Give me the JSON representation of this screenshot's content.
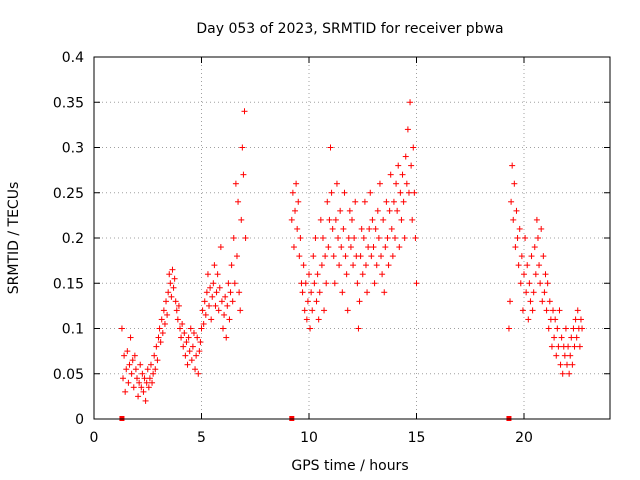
{
  "chart_data": {
    "type": "scatter",
    "title": "Day 053 of 2023, SRMTID for receiver pbwa",
    "xlabel": "GPS time / hours",
    "ylabel": "SRMTID / TECUs",
    "xlim": [
      0,
      24
    ],
    "ylim": [
      0,
      0.4
    ],
    "x_ticks": [
      0,
      5,
      10,
      15,
      20
    ],
    "y_ticks": [
      0,
      0.05,
      0.1,
      0.15,
      0.2,
      0.25,
      0.3,
      0.35,
      0.4
    ],
    "x_tick_labels": [
      "0",
      "5",
      "10",
      "15",
      "20"
    ],
    "y_tick_labels": [
      "0",
      "0.05",
      "0.1",
      "0.15",
      "0.2",
      "0.25",
      "0.3",
      "0.35",
      "0.4"
    ],
    "grid": true,
    "marker": "+",
    "color": "#ff0000",
    "data_gap_markers_x": [
      1.3,
      9.2,
      19.3
    ],
    "series": [
      {
        "name": "SRMTID",
        "points": [
          [
            1.3,
            0.1
          ],
          [
            1.35,
            0.045
          ],
          [
            1.4,
            0.07
          ],
          [
            1.45,
            0.03
          ],
          [
            1.5,
            0.055
          ],
          [
            1.55,
            0.075
          ],
          [
            1.6,
            0.04
          ],
          [
            1.65,
            0.06
          ],
          [
            1.7,
            0.09
          ],
          [
            1.75,
            0.05
          ],
          [
            1.8,
            0.065
          ],
          [
            1.85,
            0.035
          ],
          [
            1.9,
            0.07
          ],
          [
            1.95,
            0.055
          ],
          [
            2.0,
            0.045
          ],
          [
            2.05,
            0.025
          ],
          [
            2.1,
            0.04
          ],
          [
            2.15,
            0.06
          ],
          [
            2.2,
            0.035
          ],
          [
            2.25,
            0.05
          ],
          [
            2.3,
            0.03
          ],
          [
            2.35,
            0.045
          ],
          [
            2.4,
            0.02
          ],
          [
            2.45,
            0.04
          ],
          [
            2.5,
            0.055
          ],
          [
            2.55,
            0.035
          ],
          [
            2.6,
            0.045
          ],
          [
            2.65,
            0.06
          ],
          [
            2.7,
            0.04
          ],
          [
            2.75,
            0.05
          ],
          [
            2.8,
            0.07
          ],
          [
            2.85,
            0.055
          ],
          [
            2.9,
            0.08
          ],
          [
            2.95,
            0.065
          ],
          [
            3.0,
            0.09
          ],
          [
            3.05,
            0.1
          ],
          [
            3.1,
            0.085
          ],
          [
            3.15,
            0.11
          ],
          [
            3.2,
            0.095
          ],
          [
            3.25,
            0.12
          ],
          [
            3.3,
            0.105
          ],
          [
            3.35,
            0.13
          ],
          [
            3.4,
            0.115
          ],
          [
            3.45,
            0.14
          ],
          [
            3.5,
            0.16
          ],
          [
            3.55,
            0.15
          ],
          [
            3.6,
            0.135
          ],
          [
            3.65,
            0.165
          ],
          [
            3.7,
            0.145
          ],
          [
            3.75,
            0.155
          ],
          [
            3.8,
            0.13
          ],
          [
            3.85,
            0.12
          ],
          [
            3.9,
            0.11
          ],
          [
            3.95,
            0.125
          ],
          [
            4.0,
            0.1
          ],
          [
            4.05,
            0.09
          ],
          [
            4.1,
            0.105
          ],
          [
            4.15,
            0.08
          ],
          [
            4.2,
            0.095
          ],
          [
            4.25,
            0.07
          ],
          [
            4.3,
            0.085
          ],
          [
            4.35,
            0.06
          ],
          [
            4.4,
            0.09
          ],
          [
            4.45,
            0.075
          ],
          [
            4.5,
            0.1
          ],
          [
            4.55,
            0.065
          ],
          [
            4.6,
            0.08
          ],
          [
            4.65,
            0.095
          ],
          [
            4.7,
            0.055
          ],
          [
            4.75,
            0.07
          ],
          [
            4.8,
            0.09
          ],
          [
            4.85,
            0.05
          ],
          [
            4.9,
            0.075
          ],
          [
            4.95,
            0.085
          ],
          [
            5.0,
            0.1
          ],
          [
            5.05,
            0.12
          ],
          [
            5.1,
            0.105
          ],
          [
            5.15,
            0.13
          ],
          [
            5.2,
            0.115
          ],
          [
            5.25,
            0.14
          ],
          [
            5.3,
            0.16
          ],
          [
            5.35,
            0.125
          ],
          [
            5.4,
            0.145
          ],
          [
            5.45,
            0.11
          ],
          [
            5.5,
            0.135
          ],
          [
            5.55,
            0.15
          ],
          [
            5.6,
            0.17
          ],
          [
            5.65,
            0.125
          ],
          [
            5.7,
            0.14
          ],
          [
            5.75,
            0.16
          ],
          [
            5.8,
            0.12
          ],
          [
            5.85,
            0.145
          ],
          [
            5.9,
            0.19
          ],
          [
            5.95,
            0.13
          ],
          [
            6.0,
            0.1
          ],
          [
            6.05,
            0.115
          ],
          [
            6.1,
            0.135
          ],
          [
            6.15,
            0.09
          ],
          [
            6.2,
            0.125
          ],
          [
            6.25,
            0.15
          ],
          [
            6.3,
            0.11
          ],
          [
            6.35,
            0.14
          ],
          [
            6.4,
            0.17
          ],
          [
            6.45,
            0.13
          ],
          [
            6.5,
            0.2
          ],
          [
            6.55,
            0.15
          ],
          [
            6.6,
            0.26
          ],
          [
            6.65,
            0.18
          ],
          [
            6.7,
            0.24
          ],
          [
            6.75,
            0.14
          ],
          [
            6.8,
            0.12
          ],
          [
            6.85,
            0.22
          ],
          [
            6.9,
            0.3
          ],
          [
            6.95,
            0.27
          ],
          [
            7.0,
            0.34
          ],
          [
            7.05,
            0.2
          ],
          [
            9.2,
            0.22
          ],
          [
            9.25,
            0.25
          ],
          [
            9.3,
            0.19
          ],
          [
            9.35,
            0.23
          ],
          [
            9.4,
            0.26
          ],
          [
            9.45,
            0.21
          ],
          [
            9.5,
            0.24
          ],
          [
            9.55,
            0.18
          ],
          [
            9.6,
            0.2
          ],
          [
            9.65,
            0.15
          ],
          [
            9.7,
            0.14
          ],
          [
            9.75,
            0.17
          ],
          [
            9.8,
            0.12
          ],
          [
            9.85,
            0.15
          ],
          [
            9.9,
            0.11
          ],
          [
            9.95,
            0.13
          ],
          [
            10.0,
            0.16
          ],
          [
            10.05,
            0.1
          ],
          [
            10.1,
            0.14
          ],
          [
            10.15,
            0.12
          ],
          [
            10.2,
            0.18
          ],
          [
            10.25,
            0.15
          ],
          [
            10.3,
            0.2
          ],
          [
            10.35,
            0.13
          ],
          [
            10.4,
            0.16
          ],
          [
            10.45,
            0.11
          ],
          [
            10.5,
            0.14
          ],
          [
            10.55,
            0.22
          ],
          [
            10.6,
            0.17
          ],
          [
            10.65,
            0.2
          ],
          [
            10.7,
            0.12
          ],
          [
            10.75,
            0.18
          ],
          [
            10.8,
            0.15
          ],
          [
            10.85,
            0.24
          ],
          [
            10.9,
            0.19
          ],
          [
            10.95,
            0.22
          ],
          [
            11.0,
            0.3
          ],
          [
            11.05,
            0.25
          ],
          [
            11.1,
            0.21
          ],
          [
            11.15,
            0.18
          ],
          [
            11.2,
            0.15
          ],
          [
            11.25,
            0.22
          ],
          [
            11.3,
            0.26
          ],
          [
            11.35,
            0.2
          ],
          [
            11.4,
            0.17
          ],
          [
            11.45,
            0.23
          ],
          [
            11.5,
            0.19
          ],
          [
            11.55,
            0.14
          ],
          [
            11.6,
            0.21
          ],
          [
            11.65,
            0.25
          ],
          [
            11.7,
            0.18
          ],
          [
            11.75,
            0.16
          ],
          [
            11.8,
            0.12
          ],
          [
            11.85,
            0.2
          ],
          [
            11.9,
            0.23
          ],
          [
            11.95,
            0.19
          ],
          [
            12.0,
            0.22
          ],
          [
            12.05,
            0.17
          ],
          [
            12.1,
            0.2
          ],
          [
            12.15,
            0.24
          ],
          [
            12.2,
            0.18
          ],
          [
            12.25,
            0.15
          ],
          [
            12.3,
            0.1
          ],
          [
            12.35,
            0.13
          ],
          [
            12.4,
            0.18
          ],
          [
            12.45,
            0.21
          ],
          [
            12.5,
            0.16
          ],
          [
            12.55,
            0.2
          ],
          [
            12.6,
            0.24
          ],
          [
            12.65,
            0.17
          ],
          [
            12.7,
            0.14
          ],
          [
            12.75,
            0.19
          ],
          [
            12.8,
            0.21
          ],
          [
            12.85,
            0.25
          ],
          [
            12.9,
            0.18
          ],
          [
            12.95,
            0.22
          ],
          [
            13.0,
            0.19
          ],
          [
            13.05,
            0.15
          ],
          [
            13.1,
            0.21
          ],
          [
            13.15,
            0.17
          ],
          [
            13.2,
            0.23
          ],
          [
            13.25,
            0.2
          ],
          [
            13.3,
            0.26
          ],
          [
            13.35,
            0.18
          ],
          [
            13.4,
            0.16
          ],
          [
            13.45,
            0.22
          ],
          [
            13.5,
            0.14
          ],
          [
            13.55,
            0.19
          ],
          [
            13.6,
            0.24
          ],
          [
            13.65,
            0.2
          ],
          [
            13.7,
            0.17
          ],
          [
            13.75,
            0.23
          ],
          [
            13.8,
            0.27
          ],
          [
            13.85,
            0.21
          ],
          [
            13.9,
            0.18
          ],
          [
            13.95,
            0.24
          ],
          [
            14.0,
            0.2
          ],
          [
            14.05,
            0.26
          ],
          [
            14.1,
            0.23
          ],
          [
            14.15,
            0.28
          ],
          [
            14.2,
            0.19
          ],
          [
            14.25,
            0.25
          ],
          [
            14.3,
            0.22
          ],
          [
            14.35,
            0.27
          ],
          [
            14.4,
            0.24
          ],
          [
            14.45,
            0.2
          ],
          [
            14.5,
            0.29
          ],
          [
            14.55,
            0.26
          ],
          [
            14.6,
            0.32
          ],
          [
            14.65,
            0.25
          ],
          [
            14.7,
            0.35
          ],
          [
            14.75,
            0.28
          ],
          [
            14.8,
            0.22
          ],
          [
            14.85,
            0.3
          ],
          [
            14.9,
            0.25
          ],
          [
            14.95,
            0.2
          ],
          [
            15.0,
            0.15
          ],
          [
            19.3,
            0.1
          ],
          [
            19.35,
            0.13
          ],
          [
            19.4,
            0.24
          ],
          [
            19.45,
            0.28
          ],
          [
            19.5,
            0.22
          ],
          [
            19.55,
            0.26
          ],
          [
            19.6,
            0.19
          ],
          [
            19.65,
            0.23
          ],
          [
            19.7,
            0.2
          ],
          [
            19.75,
            0.17
          ],
          [
            19.8,
            0.21
          ],
          [
            19.85,
            0.15
          ],
          [
            19.9,
            0.18
          ],
          [
            19.95,
            0.12
          ],
          [
            20.0,
            0.16
          ],
          [
            20.05,
            0.2
          ],
          [
            20.1,
            0.14
          ],
          [
            20.15,
            0.17
          ],
          [
            20.2,
            0.11
          ],
          [
            20.25,
            0.15
          ],
          [
            20.3,
            0.13
          ],
          [
            20.35,
            0.18
          ],
          [
            20.4,
            0.12
          ],
          [
            20.45,
            0.14
          ],
          [
            20.5,
            0.19
          ],
          [
            20.55,
            0.16
          ],
          [
            20.6,
            0.22
          ],
          [
            20.65,
            0.2
          ],
          [
            20.7,
            0.17
          ],
          [
            20.75,
            0.15
          ],
          [
            20.8,
            0.21
          ],
          [
            20.85,
            0.13
          ],
          [
            20.9,
            0.18
          ],
          [
            20.95,
            0.14
          ],
          [
            21.0,
            0.16
          ],
          [
            21.05,
            0.12
          ],
          [
            21.1,
            0.15
          ],
          [
            21.15,
            0.1
          ],
          [
            21.2,
            0.13
          ],
          [
            21.25,
            0.11
          ],
          [
            21.3,
            0.08
          ],
          [
            21.35,
            0.12
          ],
          [
            21.4,
            0.09
          ],
          [
            21.45,
            0.11
          ],
          [
            21.5,
            0.07
          ],
          [
            21.55,
            0.1
          ],
          [
            21.6,
            0.08
          ],
          [
            21.65,
            0.12
          ],
          [
            21.7,
            0.06
          ],
          [
            21.75,
            0.09
          ],
          [
            21.8,
            0.05
          ],
          [
            21.85,
            0.08
          ],
          [
            21.9,
            0.07
          ],
          [
            21.95,
            0.1
          ],
          [
            22.0,
            0.06
          ],
          [
            22.05,
            0.08
          ],
          [
            22.1,
            0.05
          ],
          [
            22.15,
            0.07
          ],
          [
            22.2,
            0.09
          ],
          [
            22.25,
            0.06
          ],
          [
            22.3,
            0.1
          ],
          [
            22.35,
            0.08
          ],
          [
            22.4,
            0.11
          ],
          [
            22.45,
            0.09
          ],
          [
            22.5,
            0.12
          ],
          [
            22.55,
            0.1
          ],
          [
            22.6,
            0.08
          ],
          [
            22.65,
            0.11
          ],
          [
            22.7,
            0.1
          ]
        ]
      }
    ]
  }
}
